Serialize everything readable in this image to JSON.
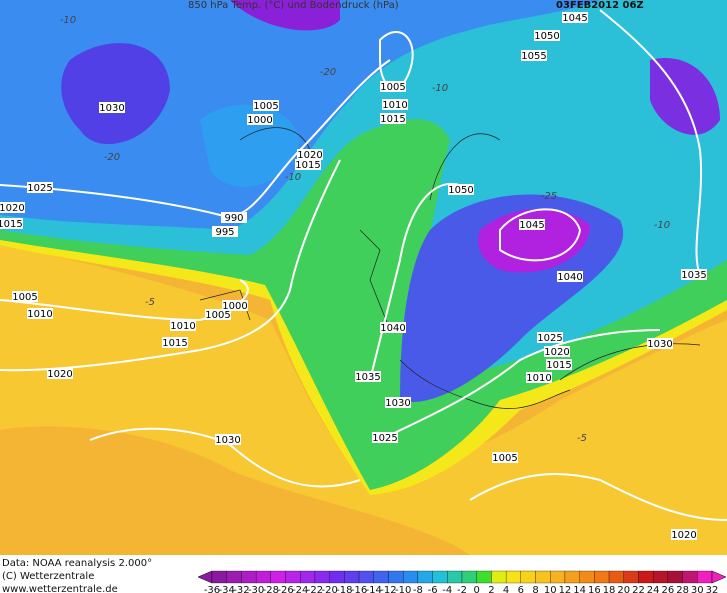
{
  "header": {
    "title": "850 hPa Temp. (°C) und Bodendruck (hPa)",
    "date": "03FEB2012 06Z"
  },
  "footer": {
    "source": "Data: NOAA reanalysis 2.000°",
    "copyright": "(C) Wetterzentrale",
    "url": "www.wetterzentrale.de"
  },
  "colorbar": {
    "ticks": [
      -36,
      -34,
      -32,
      -30,
      -28,
      -26,
      -24,
      -22,
      -20,
      -18,
      -16,
      -14,
      -12,
      -10,
      -8,
      -6,
      -4,
      -2,
      0,
      2,
      4,
      6,
      8,
      10,
      12,
      14,
      16,
      18,
      20,
      22,
      24,
      26,
      28,
      30,
      32
    ]
  },
  "isobar_labels": [
    "1030",
    "1025",
    "1020",
    "1015",
    "1005",
    "1010",
    "1005",
    "1000",
    "1020",
    "1015",
    "990",
    "995",
    "1000",
    "1005",
    "1010",
    "1015",
    "1020",
    "1030",
    "1005",
    "1010",
    "1015",
    "1045",
    "1050",
    "1055",
    "1050",
    "1045",
    "1040",
    "1035",
    "1030",
    "1040",
    "1035",
    "1030",
    "1025",
    "1025",
    "1020",
    "1015",
    "1010",
    "1005",
    "1020"
  ],
  "temperature_labels": [
    "-10",
    "-20",
    "-20",
    "-10",
    "-25",
    "-10",
    "-5",
    "-5",
    "-10"
  ]
}
